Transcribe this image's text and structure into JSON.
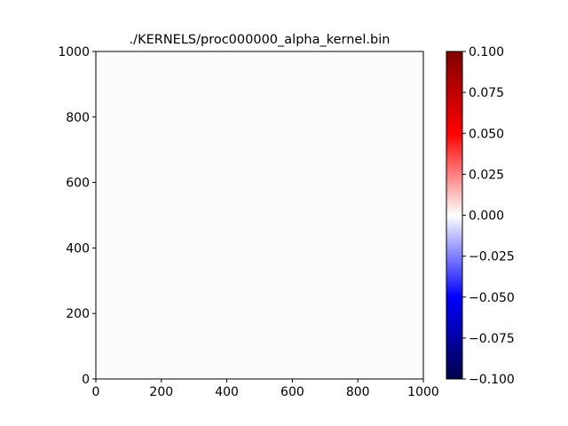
{
  "chart_data": {
    "type": "heatmap",
    "title": "./KERNELS/proc000000_alpha_kernel.bin",
    "xlabel": "",
    "ylabel": "",
    "xlim": [
      0,
      1000
    ],
    "ylim": [
      0,
      1000
    ],
    "x_ticks": [
      0,
      200,
      400,
      600,
      800,
      1000
    ],
    "y_ticks": [
      0,
      200,
      400,
      600,
      800,
      1000
    ],
    "field_value": 0.0,
    "grid": false,
    "colorbar": {
      "colormap": "seismic",
      "range": [
        -0.1,
        0.1
      ],
      "ticks": [
        -0.1,
        -0.075,
        -0.05,
        -0.025,
        0.0,
        0.025,
        0.05,
        0.075,
        0.1
      ],
      "tick_labels": [
        "−0.100",
        "−0.075",
        "−0.050",
        "−0.025",
        "0.000",
        "0.025",
        "0.050",
        "0.075",
        "0.100"
      ],
      "placement": "right"
    },
    "colors": {
      "field": "#fdfbfd",
      "cmap_low": "#00004c",
      "cmap_blue": "#0000ff",
      "cmap_mid": "#ffffff",
      "cmap_red": "#ff0000",
      "cmap_high": "#800000"
    }
  }
}
